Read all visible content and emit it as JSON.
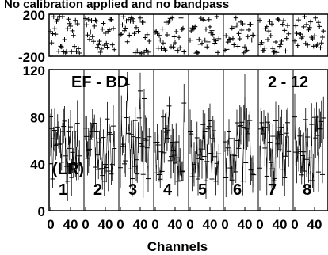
{
  "chart_data": {
    "type": "scatter",
    "title": "No calibration applied and no bandpass",
    "xlabel": "Channels",
    "panels": 8,
    "panel_x_ticks": [
      "0",
      "40"
    ],
    "panel_x_range": [
      0,
      64
    ],
    "phase_panel": {
      "ylim": [
        -200,
        200
      ],
      "yticks": [
        "200",
        "-200"
      ]
    },
    "amp_panel": {
      "ylim": [
        0,
        120
      ],
      "yticks": [
        "0",
        "40",
        "80",
        "120"
      ]
    },
    "annotations": {
      "baseline_left": "EF - BD",
      "baseline_right": "2 - 12",
      "polarization": "(LR)"
    },
    "panel_labels": [
      "1",
      "2",
      "3",
      "4",
      "5",
      "6",
      "7",
      "8"
    ],
    "grid": false,
    "marker": "plus",
    "color": "#000000"
  }
}
